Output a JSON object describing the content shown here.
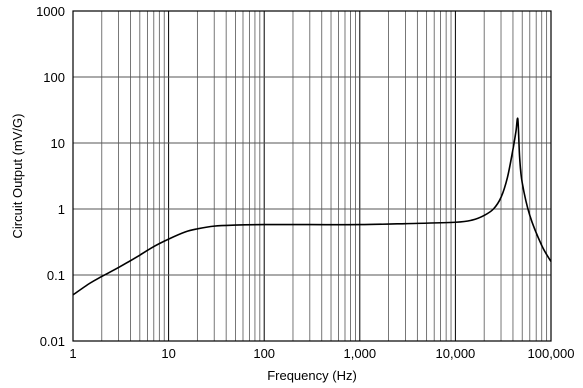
{
  "chart_data": {
    "type": "line",
    "xlabel": "Frequency (Hz)",
    "ylabel": "Circuit Output (mV/G)",
    "x_scale": "log",
    "y_scale": "log",
    "xlim": [
      1,
      100000
    ],
    "ylim": [
      0.01,
      1000
    ],
    "grid": true,
    "legend": "none",
    "x_ticks": [
      1,
      10,
      100,
      1000,
      10000,
      100000
    ],
    "x_tick_labels": [
      "1",
      "10",
      "100",
      "1,000",
      "10,000",
      "100,000"
    ],
    "y_ticks": [
      0.01,
      0.1,
      1,
      10,
      100,
      1000
    ],
    "y_tick_labels": [
      "0.01",
      "0.1",
      "1",
      "10",
      "100",
      "1000"
    ],
    "line_color": "#000000",
    "series": [
      {
        "x": [
          1,
          1.5,
          2,
          3,
          5,
          7,
          10,
          15,
          20,
          30,
          50,
          100,
          300,
          1000,
          3000,
          10000,
          15000,
          20000,
          25000,
          30000,
          35000,
          40000,
          43000,
          45000,
          47000,
          50000,
          60000,
          80000,
          100000
        ],
        "values": [
          0.05,
          0.075,
          0.095,
          0.13,
          0.2,
          0.27,
          0.35,
          0.45,
          0.5,
          0.55,
          0.57,
          0.58,
          0.58,
          0.58,
          0.6,
          0.63,
          0.68,
          0.8,
          1.0,
          1.5,
          3.0,
          8.0,
          15.0,
          23.0,
          6.0,
          2.5,
          0.8,
          0.28,
          0.16
        ]
      }
    ]
  }
}
